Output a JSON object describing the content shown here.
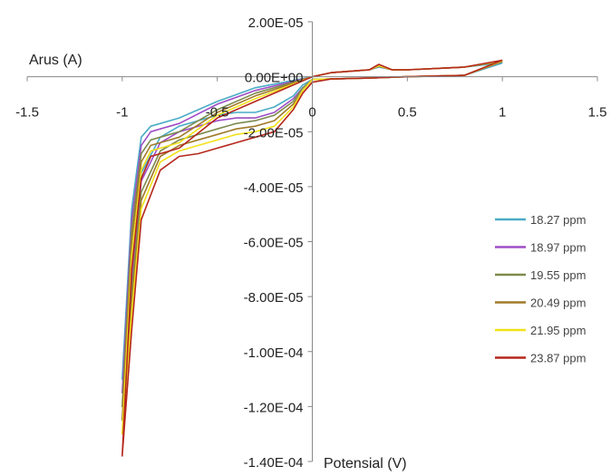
{
  "chart_data": {
    "type": "line",
    "title": "",
    "xlabel": "Potensial (V)",
    "ylabel": "Arus (A)",
    "xlim": [
      -1.5,
      1.5
    ],
    "ylim": [
      -0.00014,
      2e-05
    ],
    "x_ticks": [
      -1.5,
      -1,
      -0.5,
      0,
      0.5,
      1,
      1.5
    ],
    "x_tick_labels": [
      "-1.5",
      "-1",
      "-0.5",
      "0",
      "0.5",
      "1",
      "1.5"
    ],
    "y_ticks": [
      2e-05,
      0,
      -2e-05,
      -4e-05,
      -6e-05,
      -8e-05,
      -0.0001,
      -0.00012,
      -0.00014
    ],
    "y_tick_labels": [
      "2.00E-05",
      "0.00E+00",
      "-2.00E-05",
      "-4.00E-05",
      "-6.00E-05",
      "-8.00E-05",
      "-1.00E-04",
      "-1.20E-04",
      "-1.40E-04"
    ],
    "grid": false,
    "legend_position": "right",
    "series": [
      {
        "name": "18.27 ppm",
        "color": "#4aacc6",
        "forward": [
          [
            1.0,
            5e-06
          ],
          [
            0.8,
            3.5e-06
          ],
          [
            0.5,
            2.5e-06
          ],
          [
            0.42,
            2.5e-06
          ],
          [
            0.35,
            3.5e-06
          ],
          [
            0.3,
            2.5e-06
          ],
          [
            0.2,
            2e-06
          ],
          [
            0.1,
            1.5e-06
          ],
          [
            0.0,
            0.0
          ],
          [
            -0.3,
            -4e-06
          ],
          [
            -0.5,
            -9e-06
          ],
          [
            -0.7,
            -1.5e-05
          ],
          [
            -0.8,
            -1.7e-05
          ],
          [
            -0.85,
            -1.8e-05
          ],
          [
            -0.9,
            -2.2e-05
          ],
          [
            -0.95,
            -4.8e-05
          ],
          [
            -1.0,
            -0.00011
          ]
        ],
        "reverse": [
          [
            -1.0,
            -0.00011
          ],
          [
            -0.95,
            -7e-05
          ],
          [
            -0.9,
            -3.5e-05
          ],
          [
            -0.8,
            -2.2e-05
          ],
          [
            -0.7,
            -1.8e-05
          ],
          [
            -0.6,
            -1.6e-05
          ],
          [
            -0.5,
            -1.4e-05
          ],
          [
            -0.4,
            -1.3e-05
          ],
          [
            -0.3,
            -1.3e-05
          ],
          [
            -0.2,
            -1.1e-05
          ],
          [
            -0.1,
            -7e-06
          ],
          [
            -0.05,
            -3e-06
          ],
          [
            0.0,
            -1e-06
          ],
          [
            0.1,
            -8e-07
          ],
          [
            0.3,
            -5e-07
          ],
          [
            0.5,
            0.0
          ],
          [
            0.8,
            5e-07
          ],
          [
            1.0,
            5e-06
          ]
        ]
      },
      {
        "name": "18.97 ppm",
        "color": "#9e4ec6",
        "forward": [
          [
            1.0,
            5.5e-06
          ],
          [
            0.8,
            3.5e-06
          ],
          [
            0.5,
            2.5e-06
          ],
          [
            0.42,
            2.5e-06
          ],
          [
            0.35,
            3.7e-06
          ],
          [
            0.3,
            2.5e-06
          ],
          [
            0.2,
            2e-06
          ],
          [
            0.1,
            1.5e-06
          ],
          [
            0.0,
            0.0
          ],
          [
            -0.3,
            -5e-06
          ],
          [
            -0.5,
            -1e-05
          ],
          [
            -0.7,
            -1.7e-05
          ],
          [
            -0.8,
            -1.9e-05
          ],
          [
            -0.85,
            -2e-05
          ],
          [
            -0.9,
            -2.5e-05
          ],
          [
            -0.95,
            -5.2e-05
          ],
          [
            -1.0,
            -0.000115
          ]
        ],
        "reverse": [
          [
            -1.0,
            -0.000115
          ],
          [
            -0.95,
            -7.4e-05
          ],
          [
            -0.9,
            -3.8e-05
          ],
          [
            -0.8,
            -2.4e-05
          ],
          [
            -0.7,
            -2e-05
          ],
          [
            -0.6,
            -1.8e-05
          ],
          [
            -0.5,
            -1.6e-05
          ],
          [
            -0.4,
            -1.5e-05
          ],
          [
            -0.3,
            -1.5e-05
          ],
          [
            -0.2,
            -1.3e-05
          ],
          [
            -0.1,
            -8e-06
          ],
          [
            -0.05,
            -4e-06
          ],
          [
            0.0,
            -1e-06
          ],
          [
            0.1,
            -8e-07
          ],
          [
            0.3,
            -5e-07
          ],
          [
            0.5,
            0.0
          ],
          [
            0.8,
            5e-07
          ],
          [
            1.0,
            5.5e-06
          ]
        ]
      },
      {
        "name": "19.55 ppm",
        "color": "#7d8a4e",
        "forward": [
          [
            1.0,
            5.5e-06
          ],
          [
            0.8,
            3.5e-06
          ],
          [
            0.5,
            2.5e-06
          ],
          [
            0.42,
            2.5e-06
          ],
          [
            0.35,
            3.8e-06
          ],
          [
            0.3,
            2.5e-06
          ],
          [
            0.2,
            2e-06
          ],
          [
            0.1,
            1.5e-06
          ],
          [
            0.0,
            0.0
          ],
          [
            -0.3,
            -6e-06
          ],
          [
            -0.5,
            -1.2e-05
          ],
          [
            -0.7,
            -2e-05
          ],
          [
            -0.8,
            -2.2e-05
          ],
          [
            -0.85,
            -2.3e-05
          ],
          [
            -0.9,
            -2.8e-05
          ],
          [
            -0.95,
            -5.6e-05
          ],
          [
            -1.0,
            -0.00012
          ]
        ],
        "reverse": [
          [
            -1.0,
            -0.00012
          ],
          [
            -0.95,
            -7.8e-05
          ],
          [
            -0.9,
            -4.2e-05
          ],
          [
            -0.8,
            -2.7e-05
          ],
          [
            -0.7,
            -2.3e-05
          ],
          [
            -0.6,
            -2.1e-05
          ],
          [
            -0.5,
            -1.9e-05
          ],
          [
            -0.4,
            -1.7e-05
          ],
          [
            -0.3,
            -1.6e-05
          ],
          [
            -0.2,
            -1.4e-05
          ],
          [
            -0.1,
            -9e-06
          ],
          [
            -0.05,
            -4e-06
          ],
          [
            0.0,
            -1e-06
          ],
          [
            0.1,
            -8e-07
          ],
          [
            0.3,
            -5e-07
          ],
          [
            0.5,
            0.0
          ],
          [
            0.8,
            5e-07
          ],
          [
            1.0,
            5.5e-06
          ]
        ]
      },
      {
        "name": "20.49 ppm",
        "color": "#a07a2a",
        "forward": [
          [
            1.0,
            5.8e-06
          ],
          [
            0.8,
            3.5e-06
          ],
          [
            0.5,
            2.5e-06
          ],
          [
            0.42,
            2.5e-06
          ],
          [
            0.35,
            4e-06
          ],
          [
            0.3,
            2.5e-06
          ],
          [
            0.2,
            2e-06
          ],
          [
            0.1,
            1.5e-06
          ],
          [
            0.0,
            0.0
          ],
          [
            -0.3,
            -7e-06
          ],
          [
            -0.5,
            -1.3e-05
          ],
          [
            -0.7,
            -2.2e-05
          ],
          [
            -0.8,
            -2.4e-05
          ],
          [
            -0.85,
            -2.5e-05
          ],
          [
            -0.9,
            -3.1e-05
          ],
          [
            -0.95,
            -6e-05
          ],
          [
            -1.0,
            -0.000125
          ]
        ],
        "reverse": [
          [
            -1.0,
            -0.000125
          ],
          [
            -0.95,
            -8.2e-05
          ],
          [
            -0.9,
            -4.5e-05
          ],
          [
            -0.8,
            -2.9e-05
          ],
          [
            -0.7,
            -2.5e-05
          ],
          [
            -0.6,
            -2.3e-05
          ],
          [
            -0.5,
            -2.1e-05
          ],
          [
            -0.4,
            -1.9e-05
          ],
          [
            -0.3,
            -1.8e-05
          ],
          [
            -0.2,
            -1.6e-05
          ],
          [
            -0.1,
            -1e-05
          ],
          [
            -0.05,
            -5e-06
          ],
          [
            0.0,
            -1e-06
          ],
          [
            0.1,
            -8e-07
          ],
          [
            0.3,
            -5e-07
          ],
          [
            0.5,
            0.0
          ],
          [
            0.8,
            5e-07
          ],
          [
            1.0,
            5.8e-06
          ]
        ]
      },
      {
        "name": "21.95 ppm",
        "color": "#f2e21a",
        "forward": [
          [
            1.0,
            5.8e-06
          ],
          [
            0.8,
            3.5e-06
          ],
          [
            0.5,
            2.5e-06
          ],
          [
            0.42,
            2.5e-06
          ],
          [
            0.35,
            4e-06
          ],
          [
            0.3,
            2.5e-06
          ],
          [
            0.2,
            2e-06
          ],
          [
            0.1,
            1.5e-06
          ],
          [
            0.0,
            0.0
          ],
          [
            -0.3,
            -8e-06
          ],
          [
            -0.5,
            -1.4e-05
          ],
          [
            -0.7,
            -2.4e-05
          ],
          [
            -0.8,
            -2.6e-05
          ],
          [
            -0.85,
            -2.7e-05
          ],
          [
            -0.9,
            -3.4e-05
          ],
          [
            -0.95,
            -6.5e-05
          ],
          [
            -1.0,
            -0.00013
          ]
        ],
        "reverse": [
          [
            -1.0,
            -0.00013
          ],
          [
            -0.95,
            -8.6e-05
          ],
          [
            -0.9,
            -4.8e-05
          ],
          [
            -0.8,
            -3.1e-05
          ],
          [
            -0.7,
            -2.7e-05
          ],
          [
            -0.6,
            -2.5e-05
          ],
          [
            -0.5,
            -2.3e-05
          ],
          [
            -0.4,
            -2.1e-05
          ],
          [
            -0.3,
            -2e-05
          ],
          [
            -0.2,
            -1.8e-05
          ],
          [
            -0.1,
            -1.1e-05
          ],
          [
            -0.05,
            -5e-06
          ],
          [
            0.0,
            -1e-06
          ],
          [
            0.1,
            -8e-07
          ],
          [
            0.3,
            -5e-07
          ],
          [
            0.5,
            0.0
          ],
          [
            0.8,
            5e-07
          ],
          [
            1.0,
            5.8e-06
          ]
        ]
      },
      {
        "name": "23.87 ppm",
        "color": "#b5271c",
        "forward": [
          [
            1.0,
            6e-06
          ],
          [
            0.8,
            3.5e-06
          ],
          [
            0.5,
            2.5e-06
          ],
          [
            0.42,
            2.5e-06
          ],
          [
            0.35,
            4.5e-06
          ],
          [
            0.3,
            2.5e-06
          ],
          [
            0.2,
            2e-06
          ],
          [
            0.1,
            1.5e-06
          ],
          [
            0.0,
            0.0
          ],
          [
            -0.3,
            -9e-06
          ],
          [
            -0.5,
            -1.5e-05
          ],
          [
            -0.7,
            -2.6e-05
          ],
          [
            -0.8,
            -2.8e-05
          ],
          [
            -0.85,
            -2.9e-05
          ],
          [
            -0.9,
            -3.7e-05
          ],
          [
            -0.95,
            -7e-05
          ],
          [
            -1.0,
            -0.000138
          ]
        ],
        "reverse": [
          [
            -1.0,
            -0.000138
          ],
          [
            -0.95,
            -9.2e-05
          ],
          [
            -0.9,
            -5.2e-05
          ],
          [
            -0.8,
            -3.4e-05
          ],
          [
            -0.7,
            -2.9e-05
          ],
          [
            -0.6,
            -2.8e-05
          ],
          [
            -0.5,
            -2.6e-05
          ],
          [
            -0.4,
            -2.4e-05
          ],
          [
            -0.3,
            -2.2e-05
          ],
          [
            -0.2,
            -2e-05
          ],
          [
            -0.1,
            -1.2e-05
          ],
          [
            -0.05,
            -6e-06
          ],
          [
            0.0,
            -2e-06
          ],
          [
            0.1,
            -8e-07
          ],
          [
            0.3,
            -5e-07
          ],
          [
            0.5,
            0.0
          ],
          [
            0.8,
            5e-07
          ],
          [
            1.0,
            6e-06
          ]
        ]
      }
    ]
  }
}
